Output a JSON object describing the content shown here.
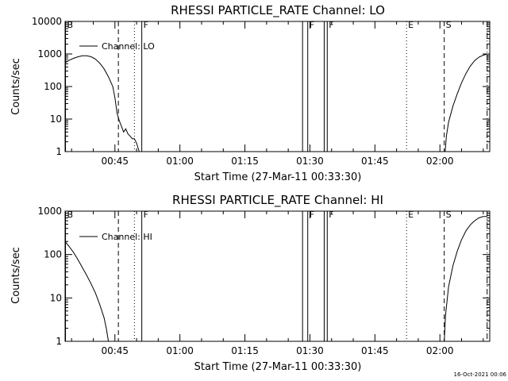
{
  "chart_data": [
    {
      "type": "line",
      "title": "RHESSI PARTICLE_RATE Channel: LO",
      "xlabel": "Start Time (27-Mar-11 00:33:30)",
      "ylabel": "Counts/sec",
      "xlim_minutes": [
        33.5,
        131.5
      ],
      "ylim": [
        1,
        10000
      ],
      "yscale": "log",
      "x_ticks": [
        45,
        60,
        75,
        90,
        105,
        120
      ],
      "x_tick_labels": [
        "00:45",
        "01:00",
        "01:15",
        "01:30",
        "01:45",
        "02:00"
      ],
      "y_ticks": [
        1,
        10,
        100,
        1000,
        10000
      ],
      "y_tick_labels": [
        "1",
        "10",
        "100",
        "1000",
        "10000"
      ],
      "legend": "Channel: LO",
      "series": [
        {
          "name": "Channel: LO",
          "segments": [
            [
              [
                33.5,
                540
              ],
              [
                34.5,
                650
              ],
              [
                35.5,
                740
              ],
              [
                36.5,
                820
              ],
              [
                37.5,
                880
              ],
              [
                38.5,
                880
              ],
              [
                39.5,
                820
              ],
              [
                40.5,
                700
              ],
              [
                41.5,
                520
              ],
              [
                42.5,
                350
              ],
              [
                43.5,
                200
              ],
              [
                44.5,
                100
              ],
              [
                45.0,
                45
              ],
              [
                45.5,
                15
              ],
              [
                46.0,
                9
              ],
              [
                46.5,
                6
              ],
              [
                47.0,
                4
              ],
              [
                47.5,
                5
              ],
              [
                48.0,
                3.5
              ],
              [
                48.5,
                3
              ],
              [
                49.0,
                2.5
              ],
              [
                49.5,
                2.5
              ],
              [
                50.0,
                1.8
              ],
              [
                50.6,
                1.0
              ]
            ],
            [
              [
                121.2,
                1.0
              ],
              [
                121.5,
                3
              ],
              [
                122,
                8
              ],
              [
                123,
                25
              ],
              [
                124,
                60
              ],
              [
                125,
                130
              ],
              [
                126,
                250
              ],
              [
                127,
                420
              ],
              [
                128,
                620
              ],
              [
                129,
                800
              ],
              [
                130,
                920
              ],
              [
                130.8,
                980
              ]
            ]
          ]
        }
      ],
      "markers": [
        {
          "label": "B",
          "minute": 33.6,
          "style": "solid"
        },
        {
          "label": "",
          "minute": 45.8,
          "style": "dashed"
        },
        {
          "label": "",
          "minute": 49.5,
          "style": "dotted"
        },
        {
          "label": "F",
          "minute": 51.2,
          "style": "solid"
        },
        {
          "label": "",
          "minute": 88.3,
          "style": "solid"
        },
        {
          "label": "F",
          "minute": 89.5,
          "style": "solid"
        },
        {
          "label": "",
          "minute": 93.3,
          "style": "solid"
        },
        {
          "label": "F",
          "minute": 94.0,
          "style": "solid"
        },
        {
          "label": "E",
          "minute": 112.3,
          "style": "dotted"
        },
        {
          "label": "S",
          "minute": 121.0,
          "style": "dashed"
        },
        {
          "label": "",
          "minute": 130.9,
          "style": "dashdot"
        }
      ]
    },
    {
      "type": "line",
      "title": "RHESSI PARTICLE_RATE Channel: HI",
      "xlabel": "Start Time (27-Mar-11 00:33:30)",
      "ylabel": "Counts/sec",
      "xlim_minutes": [
        33.5,
        131.5
      ],
      "ylim": [
        1,
        1000
      ],
      "yscale": "log",
      "x_ticks": [
        45,
        60,
        75,
        90,
        105,
        120
      ],
      "x_tick_labels": [
        "00:45",
        "01:00",
        "01:15",
        "01:30",
        "01:45",
        "02:00"
      ],
      "y_ticks": [
        1,
        10,
        100,
        1000
      ],
      "y_tick_labels": [
        "1",
        "10",
        "100",
        "1000"
      ],
      "legend": "Channel: HI",
      "series": [
        {
          "name": "Channel: HI",
          "segments": [
            [
              [
                33.5,
                200
              ],
              [
                34.5,
                150
              ],
              [
                35.5,
                110
              ],
              [
                36.5,
                75
              ],
              [
                37.5,
                50
              ],
              [
                38.5,
                33
              ],
              [
                39.5,
                21
              ],
              [
                40.5,
                13
              ],
              [
                41.5,
                7
              ],
              [
                42.5,
                3.5
              ],
              [
                43.0,
                2.0
              ],
              [
                43.5,
                1.0
              ]
            ],
            [
              [
                121.0,
                1.0
              ],
              [
                121.3,
                4
              ],
              [
                122,
                18
              ],
              [
                123,
                55
              ],
              [
                124,
                120
              ],
              [
                125,
                220
              ],
              [
                126,
                350
              ],
              [
                127,
                480
              ],
              [
                128,
                600
              ],
              [
                129,
                700
              ],
              [
                130,
                750
              ],
              [
                130.8,
                750
              ]
            ]
          ]
        }
      ],
      "markers": [
        {
          "label": "B",
          "minute": 33.6,
          "style": "solid"
        },
        {
          "label": "",
          "minute": 45.8,
          "style": "dashed"
        },
        {
          "label": "",
          "minute": 49.5,
          "style": "dotted"
        },
        {
          "label": "F",
          "minute": 51.2,
          "style": "solid"
        },
        {
          "label": "",
          "minute": 88.3,
          "style": "solid"
        },
        {
          "label": "F",
          "minute": 89.5,
          "style": "solid"
        },
        {
          "label": "",
          "minute": 93.3,
          "style": "solid"
        },
        {
          "label": "F",
          "minute": 94.0,
          "style": "solid"
        },
        {
          "label": "E",
          "minute": 112.3,
          "style": "dotted"
        },
        {
          "label": "S",
          "minute": 121.0,
          "style": "dashed"
        },
        {
          "label": "",
          "minute": 130.9,
          "style": "dashdot"
        }
      ]
    }
  ],
  "footer": {
    "timestamp": "16-Oct-2021 00:06"
  }
}
